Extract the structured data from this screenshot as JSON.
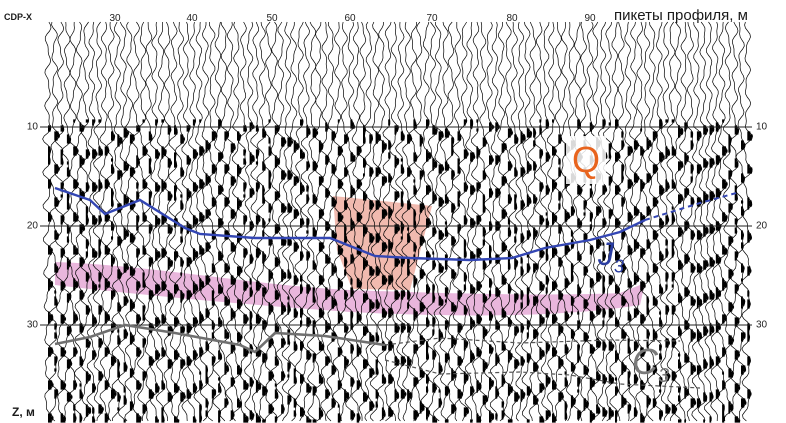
{
  "header": {
    "cdp_label": "CDP-X",
    "profile_label": "пикеты профиля, м",
    "picket_ticks": [
      "30",
      "40",
      "50",
      "60",
      "70",
      "80",
      "90"
    ]
  },
  "depth_axis": {
    "unit_label": "Z, м",
    "left_ticks": [
      "10",
      "20",
      "30"
    ],
    "right_ticks": [
      "10",
      "20",
      "30"
    ]
  },
  "layers": {
    "q": {
      "text": "Q",
      "color": "#e8641e"
    },
    "j": {
      "base": "J",
      "sub": "3",
      "color": "#2b3da0"
    },
    "c": {
      "base": "C",
      "sub": "3",
      "color": "#7a7a7a"
    }
  },
  "colors": {
    "horizon_blue": "#3346b4",
    "horizon_gray": "#6f6f6f",
    "reflector_band": "#e5a9d6",
    "anomaly_fill": "#efb3a6",
    "trace_ink": "#000000"
  }
}
